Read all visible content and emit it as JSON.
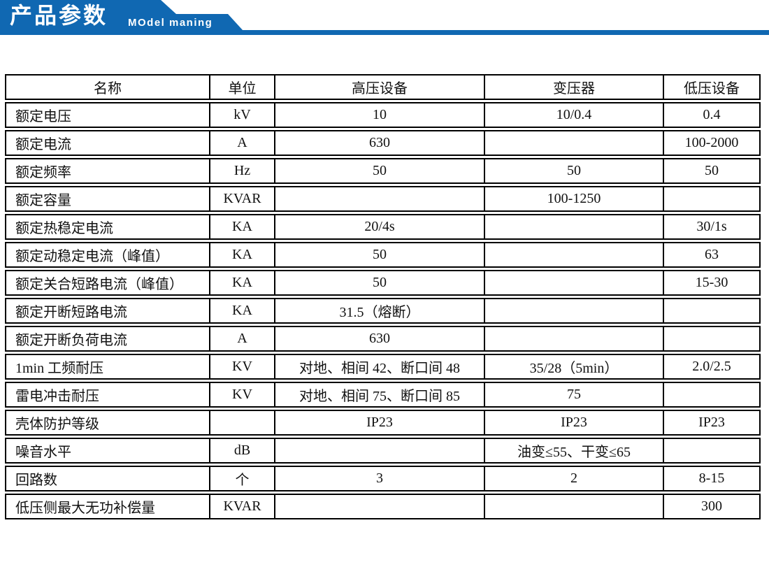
{
  "banner": {
    "title": "产品参数",
    "subtitle": "MOdel maning"
  },
  "colors": {
    "banner_blue": "#1068b2",
    "table_border": "#000000",
    "text": "#111111"
  },
  "table": {
    "columns": [
      "名称",
      "单位",
      "高压设备",
      "变压器",
      "低压设备"
    ],
    "rows": [
      [
        "额定电压",
        "kV",
        "10",
        "10/0.4",
        "0.4"
      ],
      [
        "额定电流",
        "A",
        "630",
        "",
        "100-2000"
      ],
      [
        "额定频率",
        "Hz",
        "50",
        "50",
        "50"
      ],
      [
        "额定容量",
        "KVAR",
        "",
        "100-1250",
        ""
      ],
      [
        "额定热稳定电流",
        "KA",
        "20/4s",
        "",
        "30/1s"
      ],
      [
        "额定动稳定电流（峰值）",
        "KA",
        "50",
        "",
        "63"
      ],
      [
        "额定关合短路电流（峰值）",
        "KA",
        "50",
        "",
        "15-30"
      ],
      [
        "额定开断短路电流",
        "KA",
        "31.5（熔断）",
        "",
        ""
      ],
      [
        "额定开断负荷电流",
        "A",
        "630",
        "",
        ""
      ],
      [
        "1min 工频耐压",
        "KV",
        "对地、相间 42、断口间 48",
        "35/28（5min）",
        "2.0/2.5"
      ],
      [
        "雷电冲击耐压",
        "KV",
        "对地、相间 75、断口间 85",
        "75",
        ""
      ],
      [
        "壳体防护等级",
        "",
        "IP23",
        "IP23",
        "IP23"
      ],
      [
        "噪音水平",
        "dB",
        "",
        "油变≤55、干变≤65",
        ""
      ],
      [
        "回路数",
        "个",
        "3",
        "2",
        "8-15"
      ],
      [
        "低压侧最大无功补偿量",
        "KVAR",
        "",
        "",
        "300"
      ]
    ]
  }
}
